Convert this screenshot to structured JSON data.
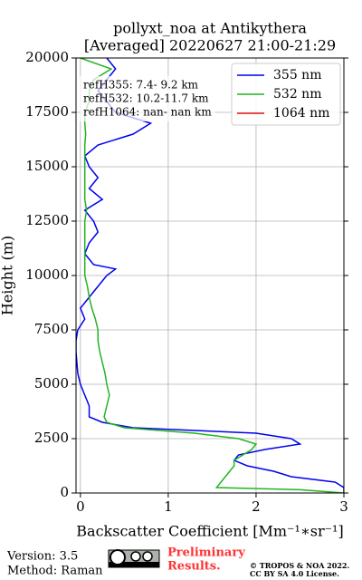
{
  "chart_data": {
    "type": "line",
    "title": [
      "pollyxt_noa at Antikythera",
      "[Averaged] 20220627 21:00-21:29"
    ],
    "x_label": "Backscatter Coefficient [Mm⁻¹∗sr⁻¹]",
    "y_label": "Height (m)",
    "heights": [
      0,
      150,
      250,
      500,
      750,
      1000,
      1250,
      1500,
      1750,
      2000,
      2250,
      2500,
      2750,
      3000,
      3250,
      3500,
      4000,
      4500,
      5000,
      5500,
      6000,
      6500,
      7000,
      7500,
      8000,
      8500,
      9000,
      9500,
      10000,
      10300,
      10500,
      11000,
      11500,
      12000,
      12500,
      13000,
      13500,
      14000,
      14500,
      15000,
      15500,
      16000,
      16500,
      17000,
      17500,
      18000,
      18500,
      19000,
      19500,
      20000
    ],
    "series": [
      {
        "name": "355 nm",
        "color": "#0000ee",
        "values": [
          3.0,
          3.0,
          3.0,
          2.9,
          2.4,
          2.2,
          1.9,
          1.75,
          1.8,
          2.1,
          2.5,
          2.4,
          2.0,
          0.6,
          0.25,
          0.1,
          0.1,
          0.05,
          0.0,
          -0.03,
          -0.04,
          -0.05,
          -0.05,
          -0.03,
          0.05,
          0.0,
          0.1,
          0.2,
          0.3,
          0.4,
          0.15,
          0.05,
          0.1,
          0.2,
          0.15,
          0.05,
          0.25,
          0.1,
          0.2,
          0.1,
          0.05,
          0.2,
          0.6,
          0.8,
          0.4,
          0.3,
          0.2,
          0.3,
          0.4,
          0.3
        ]
      },
      {
        "name": "532 nm",
        "color": "#22b422",
        "values": [
          3.0,
          2.5,
          1.55,
          1.6,
          1.65,
          1.7,
          1.75,
          1.75,
          1.85,
          1.95,
          2.0,
          1.8,
          1.3,
          0.5,
          0.3,
          0.27,
          0.3,
          0.33,
          0.3,
          0.28,
          0.25,
          0.22,
          0.2,
          0.2,
          0.17,
          0.13,
          0.1,
          0.08,
          0.05,
          0.05,
          0.05,
          0.05,
          0.05,
          0.05,
          0.05,
          0.07,
          0.05,
          0.05,
          0.05,
          0.05,
          0.05,
          0.05,
          0.06,
          0.05,
          0.05,
          0.1,
          0.1,
          0.15,
          0.35,
          0.0
        ]
      },
      {
        "name": "1064 nm",
        "color": "#dd1111",
        "values": [
          null,
          null,
          null,
          null,
          null,
          null,
          null,
          null,
          null,
          null,
          null,
          null,
          null,
          null,
          null,
          null,
          null,
          null,
          null,
          null,
          null,
          null,
          null,
          null,
          null,
          null,
          null,
          null,
          null,
          null,
          null,
          null,
          null,
          null,
          null,
          null,
          null,
          null,
          null,
          null,
          null,
          null,
          null,
          null,
          null,
          null,
          null,
          null,
          null,
          null
        ]
      }
    ],
    "xlim": [
      -0.05,
      3
    ],
    "ylim": [
      0,
      20000
    ],
    "xticks": [
      0,
      1,
      2,
      3
    ],
    "yticks": [
      0,
      2500,
      5000,
      7500,
      10000,
      12500,
      15000,
      17500,
      20000
    ],
    "grid": true,
    "legend": "upper right",
    "annotations": [
      "refH355:  7.4- 9.2 km",
      "refH532: 10.2-11.7 km",
      "refH1064:  nan- nan km"
    ]
  },
  "footer": {
    "version": "Version: 3.5",
    "method": "Method: Raman",
    "preliminary": [
      "Preliminary",
      "Results."
    ],
    "copyright": [
      "© TROPOS & NOA 2022.",
      "CC BY SA 4.0 License."
    ]
  }
}
